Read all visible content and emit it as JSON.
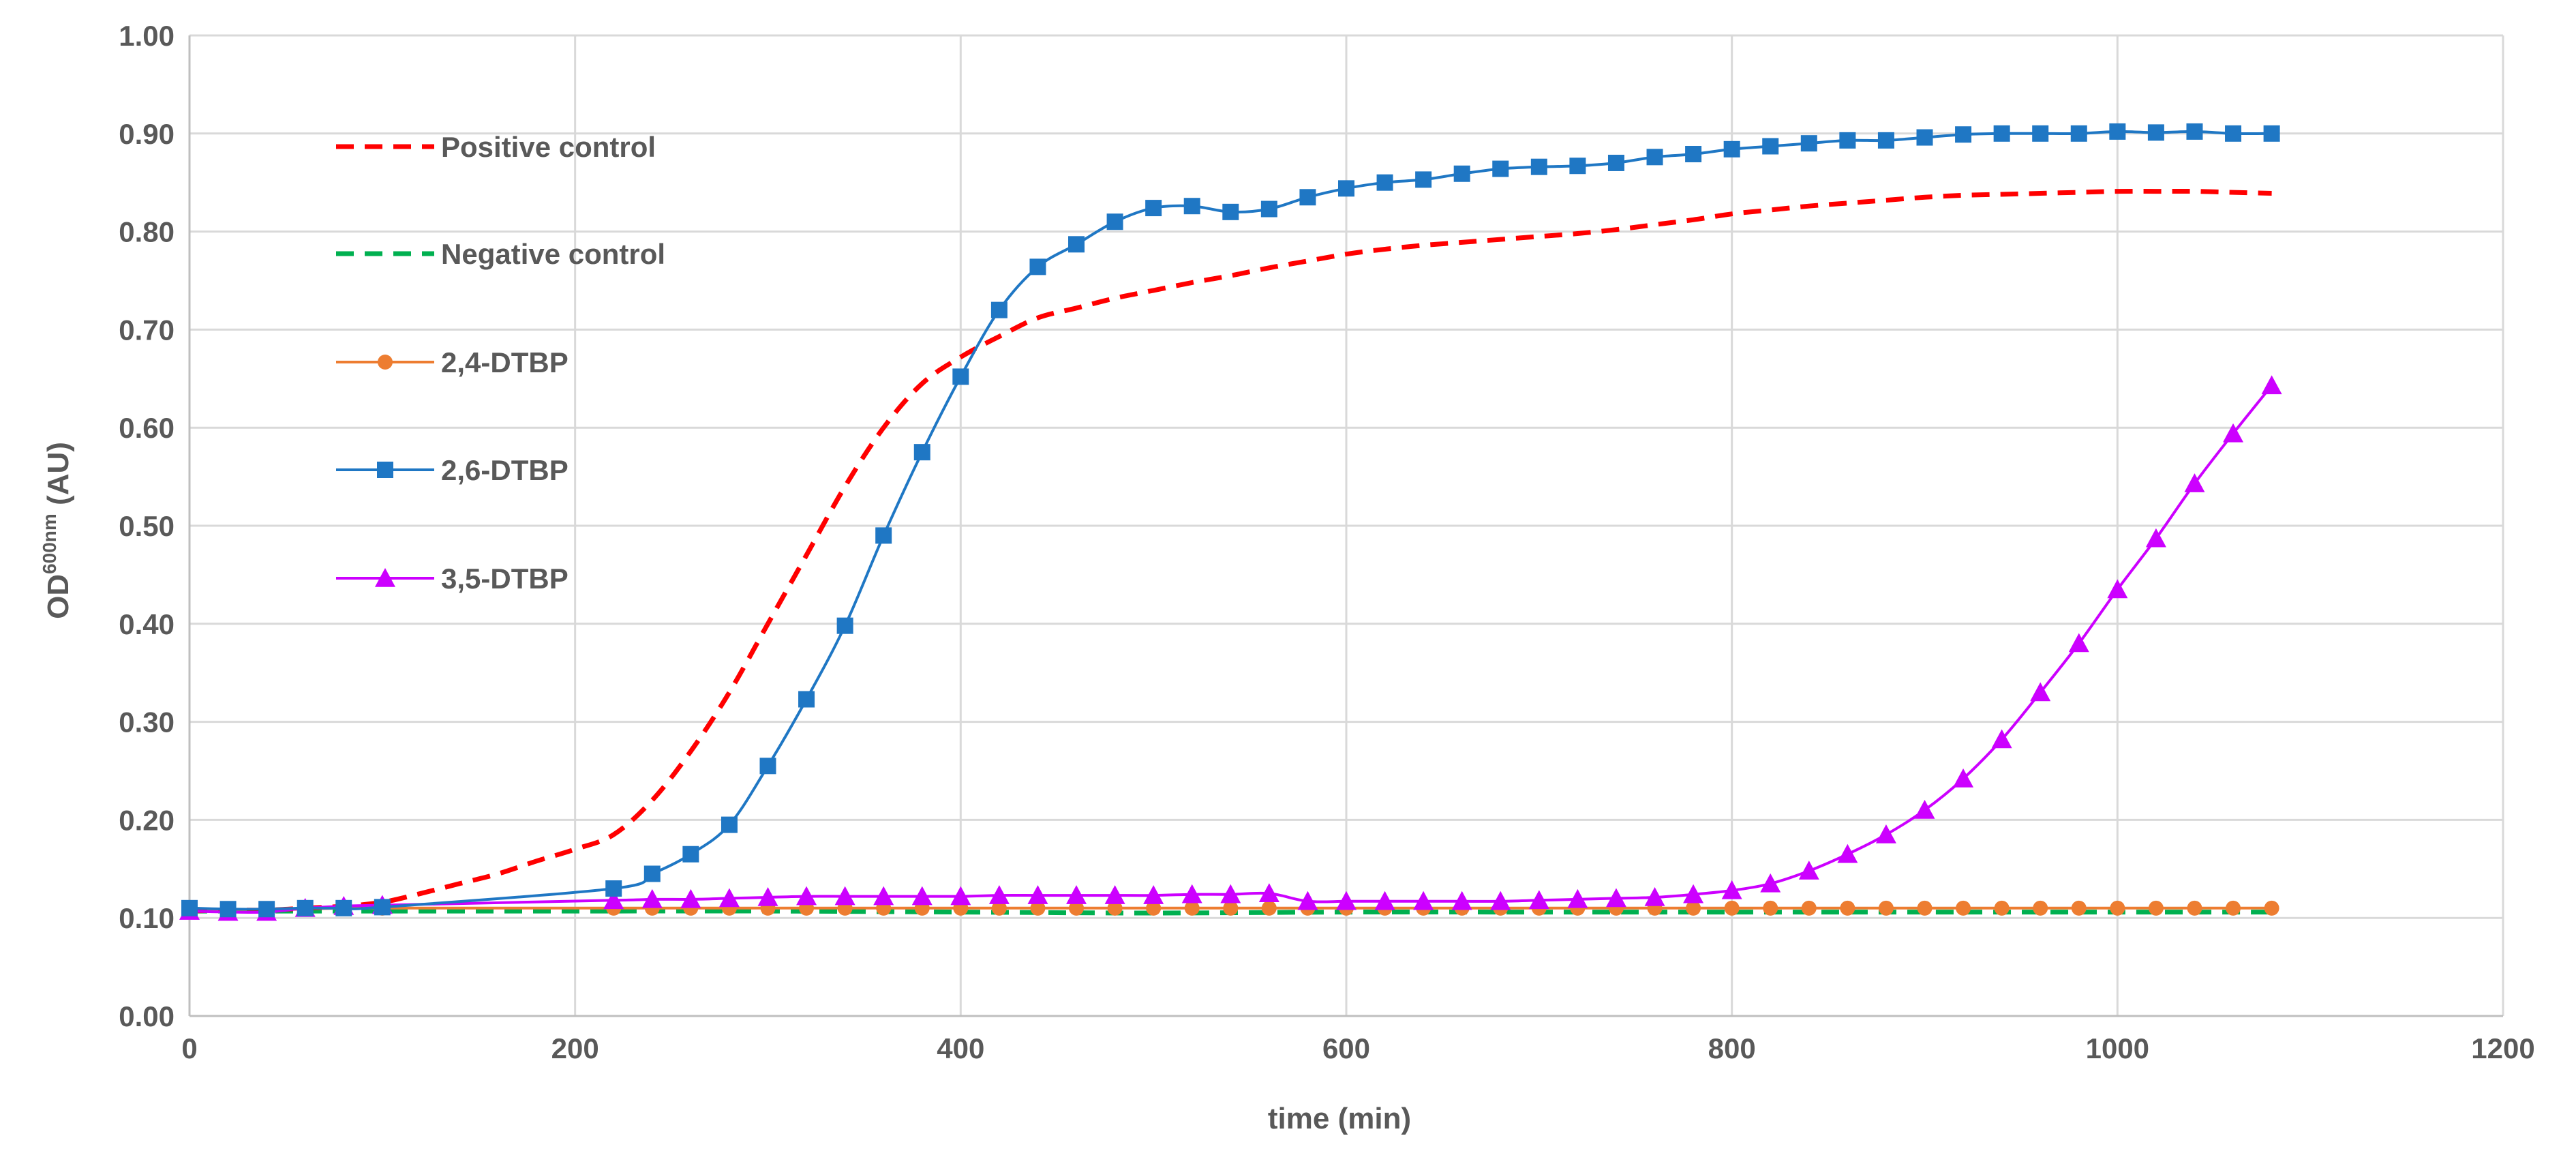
{
  "chart_data": {
    "type": "line",
    "xlabel": "time (min)",
    "ylabel_main": "OD",
    "ylabel_superscript": "600nm",
    "ylabel_suffix": " (AU)",
    "xlim": [
      0,
      1200
    ],
    "ylim": [
      0,
      1.0
    ],
    "x_ticks": [
      0,
      200,
      400,
      600,
      800,
      1000,
      1200
    ],
    "x_tick_labels": [
      "0",
      "200",
      "400",
      "600",
      "800",
      "1000",
      "1200"
    ],
    "y_ticks": [
      0,
      0.1,
      0.2,
      0.3,
      0.4,
      0.5,
      0.6,
      0.7,
      0.8,
      0.9,
      1.0
    ],
    "y_tick_labels": [
      "0.00",
      "0.10",
      "0.20",
      "0.30",
      "0.40",
      "0.50",
      "0.60",
      "0.70",
      "0.80",
      "0.90",
      "1.00"
    ],
    "grid": true,
    "legend_placement": "top-left inside",
    "series": [
      {
        "name": "Positive control",
        "color": "#ff0000",
        "style": "dashed",
        "marker": "none",
        "x": [
          0,
          20,
          40,
          60,
          80,
          100,
          120,
          140,
          160,
          180,
          200,
          220,
          240,
          260,
          280,
          300,
          320,
          340,
          360,
          380,
          400,
          420,
          440,
          460,
          480,
          500,
          520,
          540,
          560,
          580,
          600,
          620,
          640,
          660,
          680,
          700,
          720,
          740,
          760,
          780,
          800,
          820,
          840,
          860,
          880,
          900,
          920,
          940,
          960,
          980,
          1000,
          1020,
          1040,
          1060,
          1080
        ],
        "values": [
          0.107,
          0.108,
          0.108,
          0.11,
          0.112,
          0.116,
          0.125,
          0.135,
          0.145,
          0.158,
          0.17,
          0.185,
          0.22,
          0.27,
          0.33,
          0.4,
          0.47,
          0.54,
          0.6,
          0.645,
          0.672,
          0.693,
          0.712,
          0.722,
          0.732,
          0.74,
          0.748,
          0.755,
          0.763,
          0.77,
          0.777,
          0.782,
          0.786,
          0.789,
          0.792,
          0.795,
          0.798,
          0.802,
          0.807,
          0.812,
          0.818,
          0.822,
          0.826,
          0.829,
          0.832,
          0.835,
          0.837,
          0.838,
          0.839,
          0.84,
          0.841,
          0.841,
          0.841,
          0.84,
          0.839
        ]
      },
      {
        "name": "Negative control",
        "color": "#00b050",
        "style": "dashed",
        "marker": "none",
        "x": [
          0,
          100,
          200,
          300,
          400,
          500,
          600,
          700,
          800,
          900,
          1000,
          1080
        ],
        "values": [
          0.107,
          0.107,
          0.107,
          0.107,
          0.106,
          0.105,
          0.106,
          0.106,
          0.106,
          0.106,
          0.106,
          0.106
        ]
      },
      {
        "name": "2,4-DTBP",
        "color": "#ed7d31",
        "style": "solid",
        "marker": "circle",
        "x": [
          0,
          20,
          40,
          60,
          80,
          100,
          220,
          240,
          260,
          280,
          300,
          320,
          340,
          360,
          380,
          400,
          420,
          440,
          460,
          480,
          500,
          520,
          540,
          560,
          580,
          600,
          620,
          640,
          660,
          680,
          700,
          720,
          740,
          760,
          780,
          800,
          820,
          840,
          860,
          880,
          900,
          920,
          940,
          960,
          980,
          1000,
          1020,
          1040,
          1060,
          1080
        ],
        "values": [
          0.11,
          0.108,
          0.108,
          0.109,
          0.11,
          0.11,
          0.11,
          0.11,
          0.11,
          0.11,
          0.11,
          0.11,
          0.11,
          0.11,
          0.11,
          0.11,
          0.11,
          0.11,
          0.11,
          0.11,
          0.11,
          0.11,
          0.11,
          0.11,
          0.11,
          0.11,
          0.11,
          0.11,
          0.11,
          0.11,
          0.11,
          0.11,
          0.11,
          0.11,
          0.11,
          0.11,
          0.11,
          0.11,
          0.11,
          0.11,
          0.11,
          0.11,
          0.11,
          0.11,
          0.11,
          0.11,
          0.11,
          0.11,
          0.11,
          0.11
        ]
      },
      {
        "name": "2,6-DTBP",
        "color": "#1f77c4",
        "style": "solid",
        "marker": "square",
        "x": [
          0,
          20,
          40,
          60,
          80,
          100,
          220,
          240,
          260,
          280,
          300,
          320,
          340,
          360,
          380,
          400,
          420,
          440,
          460,
          480,
          500,
          520,
          540,
          560,
          580,
          600,
          620,
          640,
          660,
          680,
          700,
          720,
          740,
          760,
          780,
          800,
          820,
          840,
          860,
          880,
          900,
          920,
          940,
          960,
          980,
          1000,
          1020,
          1040,
          1060,
          1080
        ],
        "values": [
          0.11,
          0.109,
          0.109,
          0.11,
          0.11,
          0.111,
          0.13,
          0.145,
          0.165,
          0.195,
          0.255,
          0.323,
          0.398,
          0.49,
          0.575,
          0.652,
          0.72,
          0.764,
          0.787,
          0.81,
          0.824,
          0.826,
          0.82,
          0.823,
          0.835,
          0.844,
          0.85,
          0.853,
          0.859,
          0.864,
          0.866,
          0.867,
          0.87,
          0.876,
          0.879,
          0.884,
          0.887,
          0.89,
          0.893,
          0.893,
          0.896,
          0.899,
          0.9,
          0.9,
          0.9,
          0.902,
          0.901,
          0.902,
          0.9,
          0.9
        ]
      },
      {
        "name": "3,5-DTBP",
        "color": "#cc00ff",
        "style": "solid",
        "marker": "triangle",
        "x": [
          0,
          20,
          40,
          60,
          80,
          100,
          220,
          240,
          260,
          280,
          300,
          320,
          340,
          360,
          380,
          400,
          420,
          440,
          460,
          480,
          500,
          520,
          540,
          560,
          580,
          600,
          620,
          640,
          660,
          680,
          700,
          720,
          740,
          760,
          780,
          800,
          820,
          840,
          860,
          880,
          900,
          920,
          940,
          960,
          980,
          1000,
          1020,
          1040,
          1060,
          1080
        ],
        "values": [
          0.107,
          0.106,
          0.106,
          0.11,
          0.112,
          0.113,
          0.118,
          0.119,
          0.119,
          0.12,
          0.121,
          0.122,
          0.122,
          0.122,
          0.122,
          0.122,
          0.123,
          0.123,
          0.123,
          0.123,
          0.123,
          0.124,
          0.124,
          0.125,
          0.117,
          0.117,
          0.117,
          0.117,
          0.117,
          0.117,
          0.118,
          0.119,
          0.12,
          0.121,
          0.124,
          0.128,
          0.135,
          0.148,
          0.165,
          0.185,
          0.21,
          0.242,
          0.282,
          0.33,
          0.38,
          0.435,
          0.487,
          0.543,
          0.594,
          0.643
        ]
      }
    ]
  }
}
